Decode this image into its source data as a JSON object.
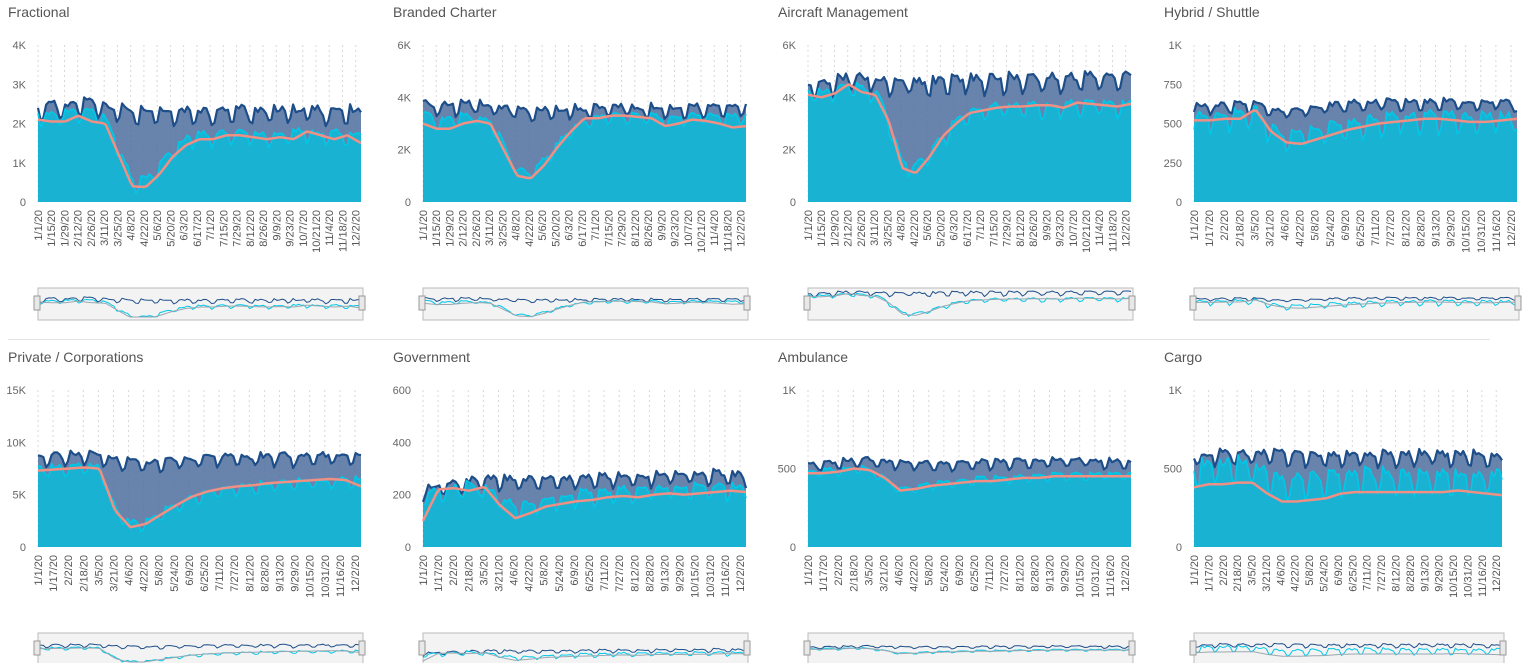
{
  "colors": {
    "dark_series": "#1d4e8a",
    "bright_series": "#00c8e8",
    "area_fill": "#19b2d2",
    "gap_fill": "#4f6e9e",
    "avg_line": "#f08f84",
    "gridline": "#d8d8d8",
    "navigator_bg": "#f3f3f3",
    "navigator_border": "#bbbbbb"
  },
  "chart_data": [
    {
      "type": "line",
      "title": "Fractional",
      "xlabel": "",
      "ylabel": "",
      "ylim": [
        0,
        4000
      ],
      "yticks": [
        "0",
        "1K",
        "2K",
        "3K",
        "4K"
      ],
      "xtick_labels": [
        "1/1/20",
        "1/15/20",
        "1/29/20",
        "2/12/20",
        "2/26/20",
        "3/11/20",
        "3/25/20",
        "4/8/20",
        "4/22/20",
        "5/6/20",
        "5/20/20",
        "6/3/20",
        "6/17/20",
        "7/1/20",
        "7/15/20",
        "7/29/20",
        "8/12/20",
        "8/26/20",
        "9/9/20",
        "9/23/20",
        "10/7/20",
        "10/21/20",
        "11/4/20",
        "11/18/20",
        "12/2/20"
      ],
      "x_range": [
        "1/1/20",
        "12/15/20"
      ],
      "grid": "vertical dashed",
      "has_navigator": true,
      "series": [
        {
          "role": "weekly peak (dark)",
          "baseline": [
            2250,
            2300,
            2300,
            2350,
            2350,
            2250,
            2200,
            2150,
            2100,
            2100,
            2100,
            2150,
            2150,
            2150,
            2150,
            2200,
            2150,
            2150,
            2150,
            2150,
            2200,
            2150,
            2150,
            2150,
            2200
          ],
          "weekly_amplitude": 500
        },
        {
          "role": "current (bright area)",
          "baseline": [
            2150,
            2100,
            2150,
            2250,
            2200,
            2050,
            1300,
            450,
            500,
            800,
            1250,
            1500,
            1600,
            1600,
            1650,
            1650,
            1650,
            1600,
            1650,
            1650,
            1700,
            1650,
            1650,
            1600,
            1650
          ],
          "weekly_amplitude": 450
        },
        {
          "role": "average (salmon line)",
          "values": [
            2100,
            2050,
            2050,
            2200,
            2050,
            2000,
            1200,
            400,
            380,
            700,
            1150,
            1450,
            1600,
            1600,
            1700,
            1700,
            1650,
            1600,
            1650,
            1600,
            1800,
            1700,
            1600,
            1700,
            1500
          ]
        }
      ]
    },
    {
      "type": "line",
      "title": "Branded Charter",
      "xlabel": "",
      "ylabel": "",
      "ylim": [
        0,
        6000
      ],
      "yticks": [
        "0",
        "2K",
        "4K",
        "6K"
      ],
      "xtick_labels": [
        "1/1/20",
        "1/15/20",
        "1/29/20",
        "2/12/20",
        "2/26/20",
        "3/11/20",
        "3/25/20",
        "4/8/20",
        "4/22/20",
        "5/6/20",
        "5/20/20",
        "6/3/20",
        "6/17/20",
        "7/1/20",
        "7/15/20",
        "7/29/20",
        "8/12/20",
        "8/26/20",
        "9/9/20",
        "9/23/20",
        "10/7/20",
        "10/21/20",
        "11/4/20",
        "11/18/20",
        "12/2/20"
      ],
      "x_range": [
        "1/1/20",
        "12/15/20"
      ],
      "grid": "vertical dashed",
      "has_navigator": true,
      "series": [
        {
          "role": "weekly peak (dark)",
          "baseline": [
            3600,
            3450,
            3500,
            3550,
            3550,
            3500,
            3400,
            3350,
            3300,
            3300,
            3300,
            3350,
            3350,
            3400,
            3400,
            3450,
            3400,
            3400,
            3400,
            3400,
            3450,
            3450,
            3450,
            3450,
            3500
          ],
          "weekly_amplitude": 600
        },
        {
          "role": "current (bright area)",
          "baseline": [
            3300,
            3000,
            3050,
            3200,
            3100,
            3000,
            2100,
            1100,
            1000,
            1500,
            2100,
            2700,
            3000,
            3100,
            3200,
            3200,
            3150,
            3150,
            3100,
            3100,
            3200,
            3200,
            3150,
            3150,
            3200
          ],
          "weekly_amplitude": 500
        },
        {
          "role": "average (salmon line)",
          "values": [
            3000,
            2800,
            2800,
            3000,
            3100,
            3000,
            2000,
            1000,
            900,
            1400,
            2100,
            2700,
            3200,
            3200,
            3300,
            3300,
            3250,
            3200,
            2900,
            3000,
            3150,
            3100,
            3000,
            2850,
            2900
          ]
        }
      ]
    },
    {
      "type": "line",
      "title": "Aircraft Management",
      "xlabel": "",
      "ylabel": "",
      "ylim": [
        0,
        6000
      ],
      "yticks": [
        "0",
        "2K",
        "4K",
        "6K"
      ],
      "xtick_labels": [
        "1/1/20",
        "1/15/20",
        "1/29/20",
        "2/12/20",
        "2/26/20",
        "3/11/20",
        "3/25/20",
        "4/8/20",
        "4/22/20",
        "5/6/20",
        "5/20/20",
        "6/3/20",
        "6/17/20",
        "7/1/20",
        "7/15/20",
        "7/29/20",
        "8/12/20",
        "8/26/20",
        "9/9/20",
        "9/23/20",
        "10/7/20",
        "10/21/20",
        "11/4/20",
        "11/18/20",
        "12/2/20"
      ],
      "x_range": [
        "1/1/20",
        "12/15/20"
      ],
      "grid": "vertical dashed",
      "has_navigator": true,
      "series": [
        {
          "role": "weekly peak (dark)",
          "baseline": [
            4300,
            4300,
            4350,
            4500,
            4500,
            4400,
            4300,
            4300,
            4300,
            4300,
            4350,
            4400,
            4400,
            4400,
            4450,
            4450,
            4450,
            4450,
            4450,
            4450,
            4500,
            4500,
            4500,
            4550,
            4600
          ],
          "weekly_amplitude": 800
        },
        {
          "role": "current (bright area)",
          "baseline": [
            4100,
            4000,
            4100,
            4300,
            4200,
            4100,
            3000,
            1400,
            1200,
            1700,
            2300,
            2900,
            3300,
            3400,
            3500,
            3500,
            3500,
            3500,
            3500,
            3550,
            3600,
            3600,
            3550,
            3550,
            3600
          ],
          "weekly_amplitude": 700
        },
        {
          "role": "average (salmon line)",
          "values": [
            4100,
            4000,
            4150,
            4500,
            4200,
            4100,
            3100,
            1300,
            1100,
            1700,
            2500,
            3000,
            3400,
            3500,
            3600,
            3650,
            3650,
            3700,
            3700,
            3600,
            3800,
            3750,
            3700,
            3650,
            3750
          ]
        }
      ]
    },
    {
      "type": "line",
      "title": "Hybrid / Shuttle",
      "xlabel": "",
      "ylabel": "",
      "ylim": [
        0,
        1000
      ],
      "yticks": [
        "0",
        "250",
        "500",
        "750",
        "1K"
      ],
      "xtick_labels": [
        "1/1/20",
        "1/17/20",
        "2/2/20",
        "2/18/20",
        "3/5/20",
        "3/21/20",
        "4/6/20",
        "4/22/20",
        "5/8/20",
        "5/24/20",
        "6/9/20",
        "6/25/20",
        "7/11/20",
        "7/27/20",
        "8/12/20",
        "8/28/20",
        "9/13/20",
        "9/29/20",
        "10/15/20",
        "10/31/20",
        "11/16/20",
        "12/2/20"
      ],
      "x_range": [
        "1/1/20",
        "12/15/20"
      ],
      "grid": "vertical dashed",
      "has_navigator": true,
      "series": [
        {
          "role": "weekly peak (dark)",
          "baseline": [
            580,
            585,
            590,
            590,
            600,
            560,
            560,
            570,
            580,
            590,
            600,
            610,
            610,
            610,
            610,
            610,
            610,
            610,
            600,
            600,
            610,
            600
          ],
          "weekly_amplitude": 80
        },
        {
          "role": "current (bright area)",
          "baseline": [
            500,
            510,
            520,
            530,
            540,
            440,
            380,
            400,
            420,
            440,
            460,
            480,
            490,
            500,
            505,
            510,
            510,
            510,
            505,
            505,
            505,
            500
          ],
          "weekly_amplitude": 160
        },
        {
          "role": "average (salmon line)",
          "values": [
            520,
            520,
            530,
            530,
            590,
            450,
            380,
            370,
            400,
            430,
            460,
            480,
            500,
            510,
            520,
            530,
            530,
            520,
            510,
            510,
            520,
            530
          ]
        }
      ]
    },
    {
      "type": "line",
      "title": "Private / Corporations",
      "xlabel": "",
      "ylabel": "",
      "ylim": [
        0,
        15000
      ],
      "yticks": [
        "0",
        "5K",
        "10K",
        "15K"
      ],
      "xtick_labels": [
        "1/1/20",
        "1/17/20",
        "2/2/20",
        "2/18/20",
        "3/5/20",
        "3/21/20",
        "4/6/20",
        "4/22/20",
        "5/8/20",
        "5/24/20",
        "6/9/20",
        "6/25/20",
        "7/11/20",
        "7/27/20",
        "8/12/20",
        "8/28/20",
        "9/13/20",
        "9/29/20",
        "10/15/20",
        "10/31/20",
        "11/16/20",
        "12/2/20"
      ],
      "x_range": [
        "1/1/20",
        "12/15/20"
      ],
      "grid": "vertical dashed",
      "has_navigator": true,
      "series": [
        {
          "role": "weekly peak (dark)",
          "baseline": [
            8200,
            8200,
            8300,
            8400,
            8300,
            7900,
            7700,
            7600,
            7700,
            7800,
            7900,
            8000,
            8100,
            8100,
            8100,
            8200,
            8200,
            8200,
            8200,
            8300,
            8300,
            8300
          ],
          "weekly_amplitude": 1400
        },
        {
          "role": "current (bright area)",
          "baseline": [
            7200,
            7300,
            7400,
            7500,
            7300,
            3500,
            2000,
            2200,
            3000,
            3800,
            4500,
            5000,
            5300,
            5500,
            5600,
            5700,
            5800,
            5900,
            6000,
            6100,
            6100,
            6100
          ],
          "weekly_amplitude": 1300
        },
        {
          "role": "average (salmon line)",
          "values": [
            7300,
            7400,
            7500,
            7600,
            7500,
            3500,
            1900,
            2200,
            3100,
            4000,
            4800,
            5300,
            5600,
            5800,
            5900,
            6100,
            6200,
            6300,
            6400,
            6500,
            6400,
            5800
          ]
        }
      ]
    },
    {
      "type": "line",
      "title": "Government",
      "xlabel": "",
      "ylabel": "",
      "ylim": [
        0,
        600
      ],
      "yticks": [
        "0",
        "200",
        "400",
        "600"
      ],
      "xtick_labels": [
        "1/1/20",
        "1/17/20",
        "2/2/20",
        "2/18/20",
        "3/5/20",
        "3/21/20",
        "4/6/20",
        "4/22/20",
        "5/8/20",
        "5/24/20",
        "6/9/20",
        "6/25/20",
        "7/11/20",
        "7/27/20",
        "8/12/20",
        "8/28/20",
        "9/13/20",
        "9/29/20",
        "10/15/20",
        "10/31/20",
        "11/16/20",
        "12/2/20"
      ],
      "x_range": [
        "1/1/20",
        "12/15/20"
      ],
      "grid": "vertical dashed",
      "has_navigator": true,
      "series": [
        {
          "role": "weekly peak (dark)",
          "baseline": [
            200,
            215,
            225,
            230,
            240,
            240,
            235,
            235,
            240,
            240,
            240,
            245,
            245,
            250,
            250,
            250,
            255,
            260,
            260,
            260,
            255,
            250
          ],
          "weekly_amplitude": 60
        },
        {
          "role": "current (bright area)",
          "baseline": [
            180,
            200,
            210,
            220,
            215,
            170,
            140,
            150,
            165,
            175,
            185,
            190,
            195,
            200,
            205,
            205,
            210,
            210,
            210,
            210,
            210,
            205
          ],
          "weekly_amplitude": 70
        },
        {
          "role": "average (salmon line)",
          "values": [
            100,
            220,
            225,
            215,
            230,
            160,
            110,
            130,
            155,
            165,
            175,
            180,
            190,
            195,
            190,
            200,
            205,
            200,
            205,
            210,
            215,
            210
          ]
        }
      ]
    },
    {
      "type": "line",
      "title": "Ambulance",
      "xlabel": "",
      "ylabel": "",
      "ylim": [
        0,
        1000
      ],
      "yticks": [
        "0",
        "500",
        "1K"
      ],
      "xtick_labels": [
        "1/1/20",
        "1/17/20",
        "2/2/20",
        "2/18/20",
        "3/5/20",
        "3/21/20",
        "4/6/20",
        "4/22/20",
        "5/8/20",
        "5/24/20",
        "6/9/20",
        "6/25/20",
        "7/11/20",
        "7/27/20",
        "8/12/20",
        "8/28/20",
        "9/13/20",
        "9/29/20",
        "10/15/20",
        "10/31/20",
        "11/16/20",
        "12/2/20"
      ],
      "x_range": [
        "1/1/20",
        "12/15/20"
      ],
      "grid": "vertical dashed",
      "has_navigator": true,
      "series": [
        {
          "role": "weekly peak (dark)",
          "baseline": [
            500,
            510,
            520,
            530,
            530,
            520,
            510,
            510,
            510,
            510,
            515,
            515,
            520,
            520,
            525,
            525,
            525,
            530,
            530,
            525,
            520,
            520
          ],
          "weekly_amplitude": 70
        },
        {
          "role": "current (bright area)",
          "baseline": [
            470,
            475,
            480,
            490,
            480,
            420,
            360,
            370,
            390,
            400,
            410,
            420,
            425,
            430,
            435,
            440,
            445,
            445,
            450,
            450,
            450,
            450
          ],
          "weekly_amplitude": 60
        },
        {
          "role": "average (salmon line)",
          "values": [
            470,
            470,
            480,
            500,
            490,
            440,
            360,
            370,
            390,
            400,
            410,
            420,
            420,
            430,
            440,
            440,
            450,
            450,
            450,
            450,
            450,
            450
          ]
        }
      ]
    },
    {
      "type": "line",
      "title": "Cargo",
      "xlabel": "",
      "ylabel": "",
      "ylim": [
        0,
        1000
      ],
      "yticks": [
        "0",
        "500",
        "1K"
      ],
      "xtick_labels": [
        "1/1/20",
        "1/17/20",
        "2/2/20",
        "2/18/20",
        "3/5/20",
        "3/21/20",
        "4/6/20",
        "4/22/20",
        "5/8/20",
        "5/24/20",
        "6/9/20",
        "6/25/20",
        "7/11/20",
        "7/27/20",
        "8/12/20",
        "8/28/20",
        "9/13/20",
        "9/29/20",
        "10/15/20",
        "10/31/20",
        "11/16/20",
        "12/2/20"
      ],
      "x_range": [
        "1/1/20",
        "12/15/20"
      ],
      "grid": "vertical dashed",
      "has_navigator": true,
      "series": [
        {
          "role": "weekly peak (dark)",
          "baseline": [
            540,
            550,
            560,
            560,
            560,
            560,
            560,
            550,
            550,
            550,
            550,
            550,
            550,
            550,
            550,
            550,
            550,
            550,
            550,
            550,
            550,
            540
          ],
          "weekly_amplitude": 110
        },
        {
          "role": "current (bright area)",
          "baseline": [
            460,
            470,
            480,
            480,
            470,
            420,
            380,
            380,
            390,
            400,
            410,
            410,
            410,
            410,
            410,
            410,
            410,
            410,
            410,
            410,
            410,
            410
          ],
          "weekly_amplitude": 200
        },
        {
          "role": "average (salmon line)",
          "values": [
            380,
            400,
            400,
            410,
            410,
            340,
            290,
            290,
            300,
            310,
            340,
            350,
            350,
            350,
            350,
            350,
            350,
            350,
            360,
            350,
            340,
            330
          ]
        }
      ]
    }
  ]
}
